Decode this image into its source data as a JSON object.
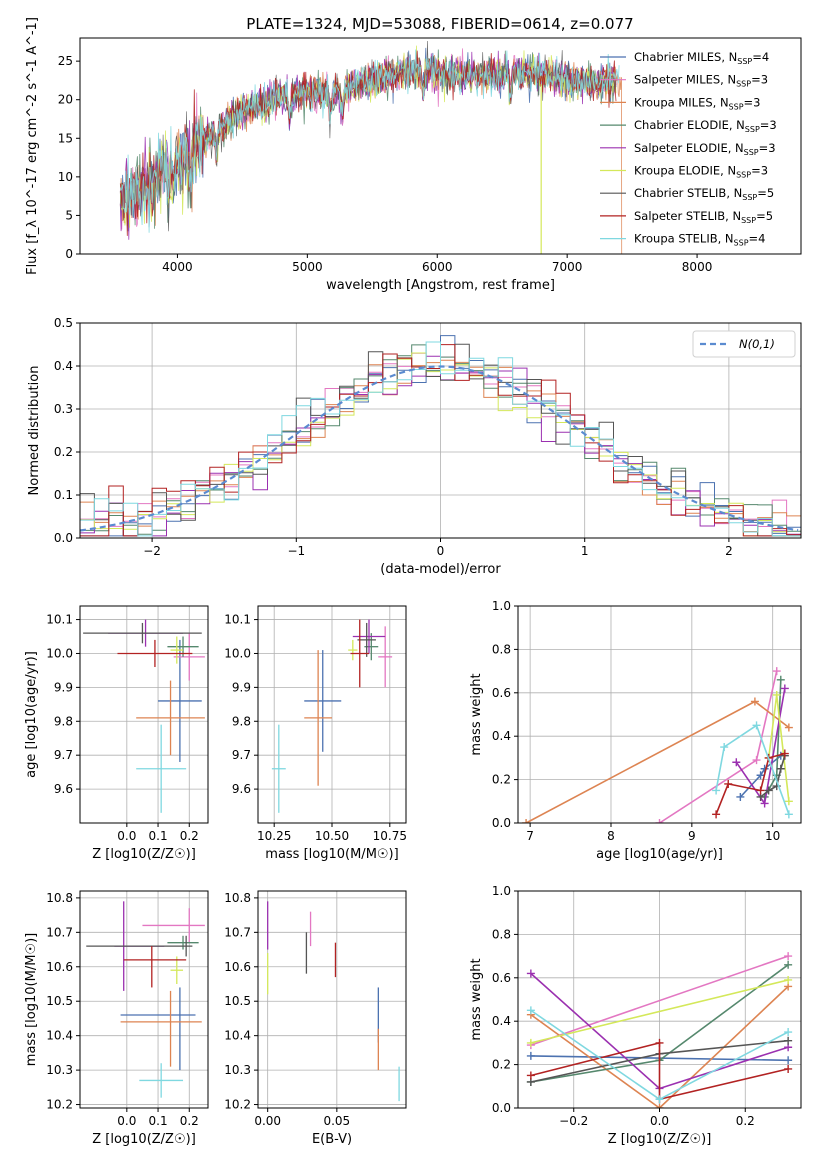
{
  "figure_title": "PLATE=1324, MJD=53088, FIBERID=0614, z=0.077",
  "colors": {
    "Chabrier MILES": "#4c72b0",
    "Salpeter MILES": "#e377c2",
    "Kroupa MILES": "#dd8452",
    "Chabrier ELODIE": "#55886d",
    "Salpeter ELODIE": "#9b30b0",
    "Kroupa ELODIE": "#d4e85a",
    "Chabrier STELIB": "#555555",
    "Salpeter STELIB": "#b22222",
    "Kroupa STELIB": "#7fd8e0"
  },
  "chart_data": [
    {
      "id": "spectrum",
      "type": "line",
      "title": "PLATE=1324, MJD=53088, FIBERID=0614, z=0.077",
      "xlabel": "wavelength [Angstrom, rest frame]",
      "ylabel": "Flux [f_λ 10^-17 erg cm^-2 s^-1 A^-1]",
      "xlim": [
        3250,
        8800
      ],
      "ylim": [
        0,
        28
      ],
      "xticks": [
        4000,
        5000,
        6000,
        7000,
        8000
      ],
      "yticks": [
        0,
        5,
        10,
        15,
        20,
        25
      ],
      "legend": "right",
      "series": [
        {
          "name": "Chabrier MILES",
          "nssp": "4"
        },
        {
          "name": "Salpeter MILES",
          "nssp": "3"
        },
        {
          "name": "Kroupa MILES",
          "nssp": "3"
        },
        {
          "name": "Chabrier ELODIE",
          "nssp": "3"
        },
        {
          "name": "Salpeter ELODIE",
          "nssp": "3"
        },
        {
          "name": "Kroupa ELODIE",
          "nssp": "3"
        },
        {
          "name": "Chabrier STELIB",
          "nssp": "5"
        },
        {
          "name": "Salpeter STELIB",
          "nssp": "5"
        },
        {
          "name": "Kroupa STELIB",
          "nssp": "4"
        }
      ],
      "spectrum_envelope": {
        "x": [
          3550,
          3700,
          3900,
          4000,
          4100,
          4300,
          4500,
          4800,
          5000,
          5200,
          5500,
          5800,
          6000,
          6300,
          6600,
          6900,
          7200,
          7400
        ],
        "y": [
          7,
          8,
          11,
          12,
          13,
          16,
          18.5,
          20.5,
          21,
          21,
          22.5,
          24,
          23.5,
          23,
          23.5,
          23,
          22,
          22.5
        ]
      }
    },
    {
      "id": "residuals",
      "type": "bar",
      "xlabel": "(data-model)/error",
      "ylabel": "Normed distribution",
      "xlim": [
        -2.5,
        2.5
      ],
      "ylim": [
        0,
        0.5
      ],
      "xticks": [
        -2,
        -1,
        0,
        1,
        2
      ],
      "yticks": [
        0.0,
        0.1,
        0.2,
        0.3,
        0.4,
        0.5
      ],
      "reference_curve": "N(0,1)",
      "legend": "top-right"
    },
    {
      "id": "age-vs-Z",
      "type": "scatter",
      "xlabel": "Z [log10(Z/Z☉)]",
      "ylabel": "age [log10(age/yr)]",
      "xlim": [
        -0.15,
        0.26
      ],
      "ylim": [
        9.5,
        10.14
      ],
      "xticks": [
        0.0,
        0.1,
        0.2
      ],
      "yticks": [
        9.6,
        9.7,
        9.8,
        9.9,
        10.0,
        10.1
      ],
      "points": [
        {
          "s": "Chabrier MILES",
          "x": 0.17,
          "y": 9.86,
          "xerr": 0.07,
          "yerr": 0.18
        },
        {
          "s": "Salpeter MILES",
          "x": 0.2,
          "y": 9.99,
          "xerr": 0.05,
          "yerr": 0.07
        },
        {
          "s": "Kroupa MILES",
          "x": 0.14,
          "y": 9.81,
          "xerr": 0.11,
          "yerr": 0.11
        },
        {
          "s": "Chabrier ELODIE",
          "x": 0.18,
          "y": 10.02,
          "xerr": 0.05,
          "yerr": 0.03
        },
        {
          "s": "Salpeter ELODIE",
          "x": 0.06,
          "y": 10.06,
          "xerr": 0.12,
          "yerr": 0.04
        },
        {
          "s": "Kroupa ELODIE",
          "x": 0.16,
          "y": 10.01,
          "xerr": 0.02,
          "yerr": 0.04
        },
        {
          "s": "Chabrier STELIB",
          "x": 0.05,
          "y": 10.06,
          "xerr": 0.19,
          "yerr": 0.03
        },
        {
          "s": "Salpeter STELIB",
          "x": 0.09,
          "y": 10.0,
          "xerr": 0.12,
          "yerr": 0.04
        },
        {
          "s": "Kroupa STELIB",
          "x": 0.11,
          "y": 9.66,
          "xerr": 0.08,
          "yerr": 0.13
        }
      ]
    },
    {
      "id": "age-vs-mass",
      "type": "scatter",
      "xlabel": "mass [log10(M/M☉)]",
      "ylabel": "",
      "xlim": [
        10.18,
        10.82
      ],
      "ylim": [
        9.5,
        10.14
      ],
      "xticks": [
        10.25,
        10.5,
        10.75
      ],
      "yticks": [
        9.6,
        9.7,
        9.8,
        9.9,
        10.0,
        10.1
      ],
      "points": [
        {
          "s": "Chabrier MILES",
          "x": 10.46,
          "y": 9.86,
          "xerr": 0.08,
          "yerr": 0.15
        },
        {
          "s": "Salpeter MILES",
          "x": 10.73,
          "y": 9.99,
          "xerr": 0.03,
          "yerr": 0.09
        },
        {
          "s": "Kroupa MILES",
          "x": 10.44,
          "y": 9.81,
          "xerr": 0.06,
          "yerr": 0.2
        },
        {
          "s": "Chabrier ELODIE",
          "x": 10.67,
          "y": 10.02,
          "xerr": 0.03,
          "yerr": 0.04
        },
        {
          "s": "Salpeter ELODIE",
          "x": 10.66,
          "y": 10.05,
          "xerr": 0.07,
          "yerr": 0.05
        },
        {
          "s": "Kroupa ELODIE",
          "x": 10.59,
          "y": 10.01,
          "xerr": 0.02,
          "yerr": 0.03
        },
        {
          "s": "Chabrier STELIB",
          "x": 10.65,
          "y": 10.04,
          "xerr": 0.04,
          "yerr": 0.05
        },
        {
          "s": "Salpeter STELIB",
          "x": 10.62,
          "y": 10.0,
          "xerr": 0.04,
          "yerr": 0.1
        },
        {
          "s": "Kroupa STELIB",
          "x": 10.27,
          "y": 9.66,
          "xerr": 0.03,
          "yerr": 0.13
        }
      ]
    },
    {
      "id": "weight-vs-age",
      "type": "line",
      "xlabel": "age [log10(age/yr)]",
      "ylabel": "mass weight",
      "xlim": [
        6.85,
        10.35
      ],
      "ylim": [
        0,
        1
      ],
      "xticks": [
        7,
        8,
        9,
        10
      ],
      "yticks": [
        0.0,
        0.2,
        0.4,
        0.6,
        0.8,
        1.0
      ],
      "series": [
        {
          "name": "Chabrier MILES",
          "x": [
            9.6,
            9.85,
            9.9,
            10.1
          ],
          "y": [
            0.12,
            0.22,
            0.25,
            0.31
          ]
        },
        {
          "name": "Salpeter MILES",
          "x": [
            8.6,
            9.8,
            10.05
          ],
          "y": [
            0.0,
            0.29,
            0.7
          ]
        },
        {
          "name": "Kroupa MILES",
          "x": [
            6.95,
            9.78,
            10.2
          ],
          "y": [
            0.0,
            0.56,
            0.44
          ]
        },
        {
          "name": "Chabrier ELODIE",
          "x": [
            9.9,
            10.05,
            10.1
          ],
          "y": [
            0.12,
            0.22,
            0.66
          ]
        },
        {
          "name": "Salpeter ELODIE",
          "x": [
            9.55,
            9.9,
            10.15
          ],
          "y": [
            0.28,
            0.09,
            0.62
          ]
        },
        {
          "name": "Kroupa ELODIE",
          "x": [
            9.95,
            10.05,
            10.2
          ],
          "y": [
            0.3,
            0.59,
            0.1
          ]
        },
        {
          "name": "Chabrier STELIB",
          "x": [
            9.85,
            9.95,
            10.05,
            10.1,
            10.15
          ],
          "y": [
            0.12,
            0.15,
            0.17,
            0.25,
            0.31
          ]
        },
        {
          "name": "Salpeter STELIB",
          "x": [
            9.3,
            9.45,
            9.85,
            9.95,
            10.15
          ],
          "y": [
            0.04,
            0.18,
            0.15,
            0.3,
            0.32
          ]
        },
        {
          "name": "Kroupa STELIB",
          "x": [
            9.3,
            9.4,
            9.8,
            10.2
          ],
          "y": [
            0.15,
            0.35,
            0.45,
            0.04
          ]
        }
      ]
    },
    {
      "id": "mass-vs-Z",
      "type": "scatter",
      "xlabel": "Z [log10(Z/Z☉)]",
      "ylabel": "mass [log10(M/M☉)]",
      "xlim": [
        -0.15,
        0.26
      ],
      "ylim": [
        10.19,
        10.82
      ],
      "xticks": [
        0.0,
        0.1,
        0.2
      ],
      "yticks": [
        10.2,
        10.3,
        10.4,
        10.5,
        10.6,
        10.7,
        10.8
      ],
      "points": [
        {
          "s": "Chabrier MILES",
          "x": 0.1,
          "y": 10.46,
          "xerr": 0.12,
          "yerr": 0.0
        },
        {
          "s": "Chabrier MILES",
          "x": 0.17,
          "y": 10.42,
          "xerr": 0.0,
          "yerr": 0.12
        },
        {
          "s": "Salpeter MILES",
          "x": 0.15,
          "y": 10.72,
          "xerr": 0.1,
          "yerr": 0.0
        },
        {
          "s": "Salpeter MILES",
          "x": 0.2,
          "y": 10.72,
          "xerr": 0.0,
          "yerr": 0.05
        },
        {
          "s": "Kroupa MILES",
          "x": 0.11,
          "y": 10.44,
          "xerr": 0.13,
          "yerr": 0.0
        },
        {
          "s": "Kroupa MILES",
          "x": 0.14,
          "y": 10.42,
          "xerr": 0.0,
          "yerr": 0.11
        },
        {
          "s": "Chabrier ELODIE",
          "x": 0.18,
          "y": 10.67,
          "xerr": 0.05,
          "yerr": 0.02
        },
        {
          "s": "Salpeter ELODIE",
          "x": 0.04,
          "y": 10.66,
          "xerr": 0.08,
          "yerr": 0.0
        },
        {
          "s": "Salpeter ELODIE",
          "x": -0.01,
          "y": 10.66,
          "xerr": 0.0,
          "yerr": 0.13
        },
        {
          "s": "Kroupa ELODIE",
          "x": 0.16,
          "y": 10.59,
          "xerr": 0.02,
          "yerr": 0.04
        },
        {
          "s": "Chabrier STELIB",
          "x": 0.04,
          "y": 10.66,
          "xerr": 0.17,
          "yerr": 0.0
        },
        {
          "s": "Chabrier STELIB",
          "x": 0.19,
          "y": 10.66,
          "xerr": 0.0,
          "yerr": 0.03
        },
        {
          "s": "Salpeter STELIB",
          "x": 0.09,
          "y": 10.62,
          "xerr": 0.1,
          "yerr": 0.0
        },
        {
          "s": "Salpeter STELIB",
          "x": 0.08,
          "y": 10.6,
          "xerr": 0.0,
          "yerr": 0.06
        },
        {
          "s": "Kroupa STELIB",
          "x": 0.11,
          "y": 10.27,
          "xerr": 0.07,
          "yerr": 0.05
        }
      ]
    },
    {
      "id": "mass-vs-EBV",
      "type": "scatter",
      "xlabel": "E(B-V)",
      "ylabel": "",
      "xlim": [
        -0.007,
        0.1
      ],
      "ylim": [
        10.19,
        10.82
      ],
      "xticks": [
        0.0,
        0.05
      ],
      "yticks": [
        10.2,
        10.3,
        10.4,
        10.5,
        10.6,
        10.7,
        10.8
      ],
      "points": [
        {
          "s": "Salpeter ELODIE",
          "x": 0.0,
          "y": 10.72,
          "xerr": 0.0,
          "yerr": 0.07
        },
        {
          "s": "Kroupa ELODIE",
          "x": 0.0,
          "y": 10.58,
          "xerr": 0.0,
          "yerr": 0.06
        },
        {
          "s": "Chabrier STELIB",
          "x": 0.028,
          "y": 10.64,
          "xerr": 0.0,
          "yerr": 0.06
        },
        {
          "s": "Salpeter MILES",
          "x": 0.031,
          "y": 10.71,
          "xerr": 0.0,
          "yerr": 0.05
        },
        {
          "s": "Salpeter STELIB",
          "x": 0.049,
          "y": 10.62,
          "xerr": 0.0,
          "yerr": 0.05
        },
        {
          "s": "Chabrier MILES",
          "x": 0.08,
          "y": 10.46,
          "xerr": 0.0,
          "yerr": 0.08
        },
        {
          "s": "Kroupa MILES",
          "x": 0.08,
          "y": 10.36,
          "xerr": 0.0,
          "yerr": 0.06
        },
        {
          "s": "Kroupa STELIB",
          "x": 0.095,
          "y": 10.26,
          "xerr": 0.0,
          "yerr": 0.05
        }
      ]
    },
    {
      "id": "weight-vs-Z",
      "type": "line",
      "xlabel": "Z [log10(Z/Z☉)]",
      "ylabel": "mass weight",
      "xlim": [
        -0.33,
        0.33
      ],
      "ylim": [
        0,
        1
      ],
      "xticks": [
        -0.2,
        0.0,
        0.2
      ],
      "yticks": [
        0.0,
        0.2,
        0.4,
        0.6,
        0.8,
        1.0
      ],
      "series": [
        {
          "name": "Chabrier MILES",
          "x": [
            -0.3,
            0.3
          ],
          "y": [
            0.24,
            0.22
          ]
        },
        {
          "name": "Salpeter MILES",
          "x": [
            -0.3,
            0.3
          ],
          "y": [
            0.29,
            0.7
          ]
        },
        {
          "name": "Kroupa MILES",
          "x": [
            -0.3,
            0.0,
            0.3
          ],
          "y": [
            0.43,
            0.0,
            0.56
          ]
        },
        {
          "name": "Chabrier ELODIE",
          "x": [
            -0.3,
            0.0,
            0.3
          ],
          "y": [
            0.12,
            0.22,
            0.66
          ]
        },
        {
          "name": "Salpeter ELODIE",
          "x": [
            -0.3,
            0.0,
            0.3
          ],
          "y": [
            0.62,
            0.09,
            0.28
          ]
        },
        {
          "name": "Kroupa ELODIE",
          "x": [
            -0.3,
            0.3
          ],
          "y": [
            0.3,
            0.59
          ]
        },
        {
          "name": "Chabrier STELIB",
          "x": [
            -0.3,
            0.0,
            0.3
          ],
          "y": [
            0.12,
            0.25,
            0.31
          ]
        },
        {
          "name": "Salpeter STELIB",
          "x": [
            -0.3,
            0.0,
            0.0,
            0.3
          ],
          "y": [
            0.15,
            0.3,
            0.04,
            0.18
          ]
        },
        {
          "name": "Kroupa STELIB",
          "x": [
            -0.3,
            0.0,
            0.3
          ],
          "y": [
            0.45,
            0.04,
            0.35
          ]
        }
      ]
    }
  ]
}
